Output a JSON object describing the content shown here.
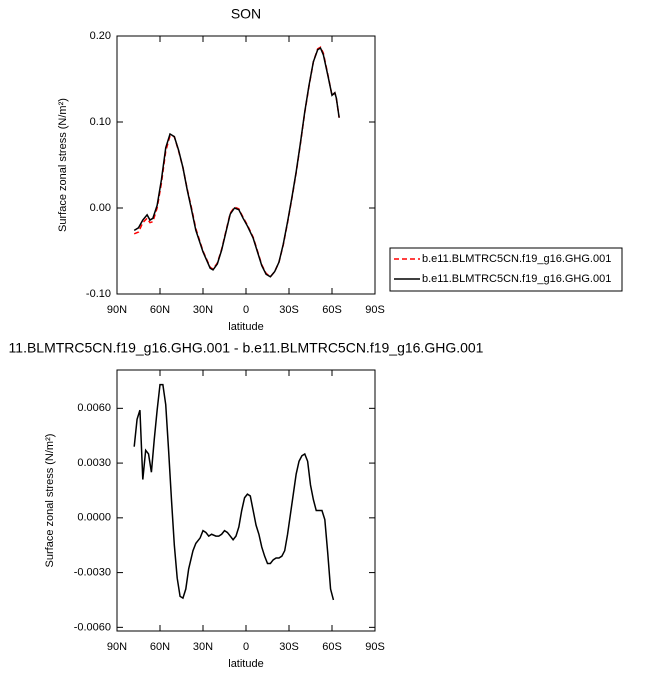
{
  "chart_data": [
    {
      "type": "line",
      "title": "SON",
      "x_label": "latitude",
      "y_label": "Surface zonal stress (N/m²)",
      "x": [
        78,
        75,
        72,
        69,
        67,
        65,
        62,
        59,
        56,
        53,
        50,
        47,
        44,
        41,
        38,
        35,
        30,
        25,
        23,
        20,
        17,
        14,
        11,
        8,
        5,
        2,
        -1,
        -5,
        -8,
        -11,
        -14,
        -17,
        -20,
        -23,
        -26,
        -29,
        -32,
        -35,
        -38,
        -41,
        -44,
        -47,
        -50,
        -52,
        -54,
        -57,
        -60,
        -62,
        -63,
        -65
      ],
      "series": [
        {
          "name": "b.e11.BLMTRC5CN.f19_g16.GHG.001",
          "color": "#ff0000",
          "dash": true,
          "values": [
            -0.03,
            -0.028,
            -0.017,
            -0.012,
            -0.017,
            -0.016,
            0.0,
            0.029,
            0.066,
            0.084,
            0.083,
            0.066,
            0.047,
            0.022,
            0.0,
            -0.024,
            -0.05,
            -0.069,
            -0.071,
            -0.064,
            -0.048,
            -0.027,
            -0.006,
            0.001,
            -0.001,
            -0.011,
            -0.02,
            -0.034,
            -0.05,
            -0.066,
            -0.076,
            -0.08,
            -0.074,
            -0.063,
            -0.043,
            -0.017,
            0.011,
            0.041,
            0.075,
            0.111,
            0.142,
            0.17,
            0.185,
            0.187,
            0.18,
            0.156,
            0.131,
            0.134,
            0.128,
            0.105
          ]
        },
        {
          "name": "b.e11.BLMTRC5CN.f19_g16.GHG.001",
          "color": "#000000",
          "dash": false,
          "values": [
            -0.026,
            -0.023,
            -0.014,
            -0.008,
            -0.014,
            -0.012,
            0.003,
            0.033,
            0.07,
            0.086,
            0.083,
            0.067,
            0.047,
            0.021,
            -0.002,
            -0.026,
            -0.051,
            -0.07,
            -0.072,
            -0.065,
            -0.049,
            -0.028,
            -0.007,
            0.0,
            -0.002,
            -0.012,
            -0.021,
            -0.035,
            -0.051,
            -0.067,
            -0.077,
            -0.08,
            -0.074,
            -0.063,
            -0.042,
            -0.016,
            0.012,
            0.042,
            0.076,
            0.112,
            0.143,
            0.17,
            0.184,
            0.186,
            0.178,
            0.155,
            0.131,
            0.134,
            0.128,
            0.105
          ]
        }
      ],
      "xlim": [
        90,
        -90
      ],
      "xticks": [
        {
          "value": 90,
          "label": "90N"
        },
        {
          "value": 60,
          "label": "60N"
        },
        {
          "value": 30,
          "label": "30N"
        },
        0,
        {
          "value": -30,
          "label": "30S"
        },
        {
          "value": -60,
          "label": "60S"
        },
        {
          "value": -90,
          "label": "90S"
        }
      ],
      "ylim": [
        -0.1,
        0.2
      ],
      "yticks": [
        {
          "value": -0.1,
          "label": "-0.10"
        },
        {
          "value": 0,
          "label": "0.00"
        },
        {
          "value": 0.1,
          "label": "0.10"
        },
        {
          "value": 0.2,
          "label": "0.20"
        }
      ],
      "legend": "right"
    },
    {
      "type": "line",
      "title": "11.BLMTRC5CN.f19_g16.GHG.001 - b.e11.BLMTRC5CN.f19_g16.GHG.001",
      "x_label": "latitude",
      "y_label": "Surface zonal stress (N/m²)",
      "x": [
        78,
        76,
        74,
        72,
        70,
        68,
        66,
        64,
        62,
        60,
        58,
        56,
        54,
        52,
        50,
        48,
        46,
        44,
        42,
        40,
        37,
        35,
        32,
        30,
        28,
        26,
        24,
        21,
        19,
        17,
        15,
        13,
        11,
        9,
        7,
        5,
        3,
        1,
        -1,
        -3,
        -5,
        -7,
        -9,
        -11,
        -13,
        -15,
        -17,
        -19,
        -21,
        -23,
        -25,
        -27,
        -29,
        -31,
        -33,
        -35,
        -37,
        -39,
        -41,
        -43,
        -45,
        -47,
        -49,
        -51,
        -53,
        -55,
        -57,
        -59,
        -61
      ],
      "series": [
        {
          "color": "#000000",
          "dash": false,
          "values": [
            0.0039,
            0.0054,
            0.0059,
            0.0021,
            0.0037,
            0.0035,
            0.0025,
            0.0043,
            0.0059,
            0.0073,
            0.0073,
            0.0062,
            0.0037,
            0.001,
            -0.0015,
            -0.0033,
            -0.0043,
            -0.0044,
            -0.0039,
            -0.0028,
            -0.0018,
            -0.0014,
            -0.0011,
            -0.0007,
            -0.0008,
            -0.001,
            -0.0009,
            -0.001,
            -0.001,
            -0.0009,
            -0.0007,
            -0.0008,
            -0.001,
            -0.0012,
            -0.001,
            -0.0005,
            0.0004,
            0.0011,
            0.0013,
            0.0012,
            0.0004,
            -0.0004,
            -0.0009,
            -0.0016,
            -0.0021,
            -0.0025,
            -0.0025,
            -0.0023,
            -0.0022,
            -0.0022,
            -0.0021,
            -0.0018,
            -0.0009,
            0.0002,
            0.0013,
            0.0024,
            0.0031,
            0.0034,
            0.0035,
            0.0031,
            0.0018,
            0.001,
            0.0004,
            0.0004,
            0.0004,
            -0.0001,
            -0.0019,
            -0.0039,
            -0.0045
          ]
        }
      ],
      "xlim": [
        90,
        -90
      ],
      "xticks": [
        {
          "value": 90,
          "label": "90N"
        },
        {
          "value": 60,
          "label": "60N"
        },
        {
          "value": 30,
          "label": "30N"
        },
        0,
        {
          "value": -30,
          "label": "30S"
        },
        {
          "value": -60,
          "label": "60S"
        },
        {
          "value": -90,
          "label": "90S"
        }
      ],
      "ylim": [
        -0.0062,
        0.0081
      ],
      "yticks": [
        {
          "value": -0.006,
          "label": "-0.0060"
        },
        {
          "value": -0.003,
          "label": "-0.0030"
        },
        {
          "value": 0,
          "label": "0.0000"
        },
        {
          "value": 0.003,
          "label": "0.0030"
        },
        {
          "value": 0.006,
          "label": "0.0060"
        }
      ]
    }
  ]
}
